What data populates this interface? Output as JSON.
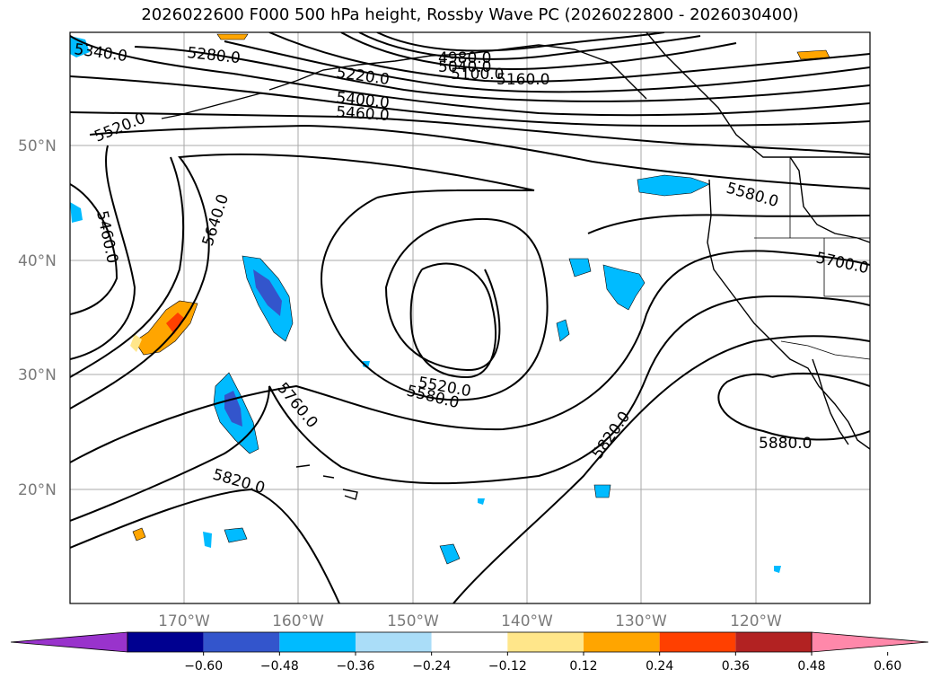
{
  "title": "2026022600 F000 500 hPa height, Rossby Wave PC (2026022800 - 2026030400)",
  "lat_labels": [
    "50°N",
    "40°N",
    "30°N",
    "20°N"
  ],
  "lon_labels": [
    "170°W",
    "160°W",
    "150°W",
    "140°W",
    "130°W",
    "120°W"
  ],
  "contour_labels": [
    "5340.0",
    "5280.0",
    "4980.0",
    "5040.0",
    "5100.0",
    "5160.0",
    "5220.0",
    "5400.0",
    "5460.0",
    "5520.0",
    "5460.0",
    "5640.0",
    "5580.0",
    "5700.0",
    "5520.0",
    "5580.0",
    "5760.0",
    "5820.0",
    "5820.0",
    "5880.0"
  ],
  "colorbar": {
    "ticks": [
      "−0.60",
      "−0.48",
      "−0.36",
      "−0.24",
      "−0.12",
      "0.12",
      "0.24",
      "0.36",
      "0.48",
      "0.60"
    ],
    "colors": [
      "#9933cc",
      "#000090",
      "#3355cc",
      "#00bbff",
      "#aaddf8",
      "#ffffff",
      "#ffe68a",
      "#ffa500",
      "#ff4000",
      "#b22222",
      "#ff88aa"
    ]
  },
  "colors": {
    "contour": "#000000",
    "grid": "#aaaaaa",
    "coast": "#000000"
  }
}
